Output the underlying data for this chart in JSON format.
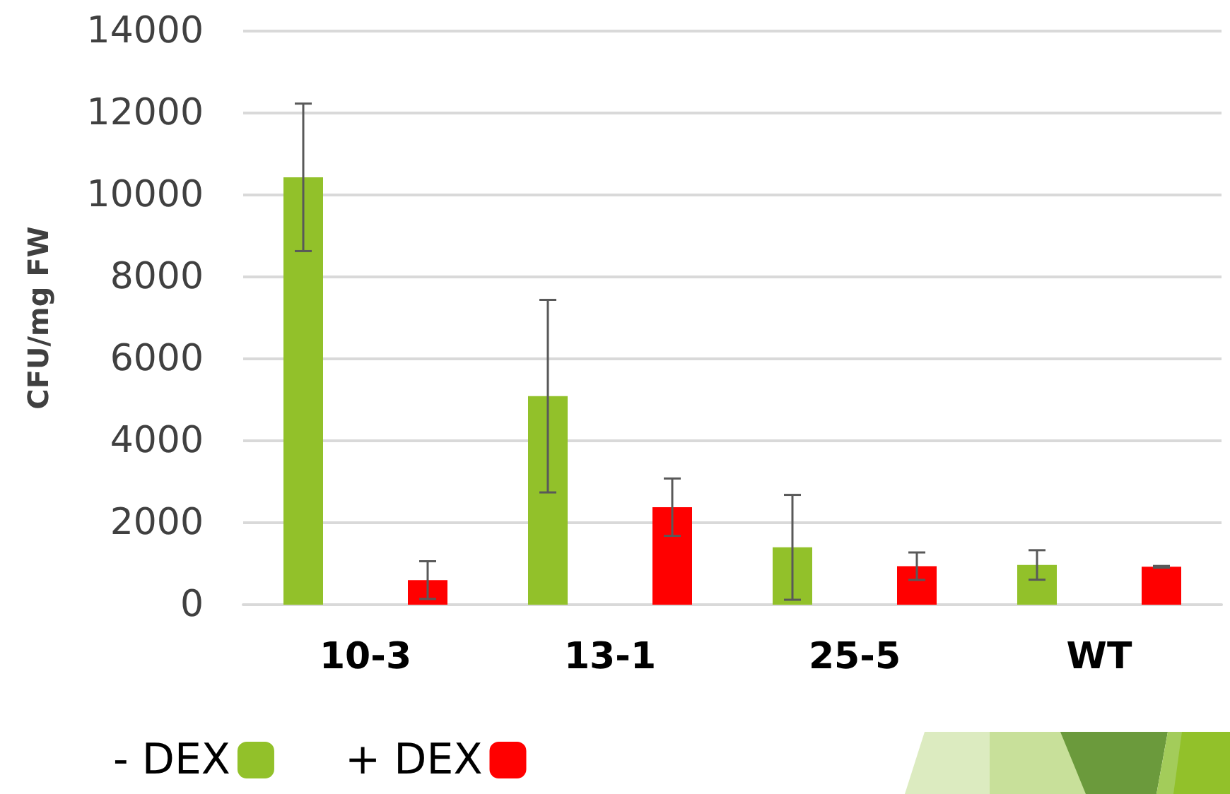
{
  "chart_data": {
    "type": "bar",
    "ylabel": "CFU/mg FW",
    "categories": [
      "10-3",
      "13-1",
      "25-5",
      "WT"
    ],
    "series": [
      {
        "name": "- DEX",
        "color": "#92c12a",
        "values": [
          10430,
          5090,
          1400,
          970
        ],
        "errors": [
          1800,
          2350,
          1280,
          360
        ]
      },
      {
        "name": "+ DEX",
        "color": "#ff0000",
        "values": [
          600,
          2380,
          940,
          925
        ],
        "errors": [
          460,
          700,
          335,
          20
        ]
      }
    ],
    "ylim": [
      0,
      14000
    ],
    "yticks": [
      0,
      2000,
      4000,
      6000,
      8000,
      10000,
      12000,
      14000
    ],
    "grid": "y",
    "legend": "bottom left"
  }
}
